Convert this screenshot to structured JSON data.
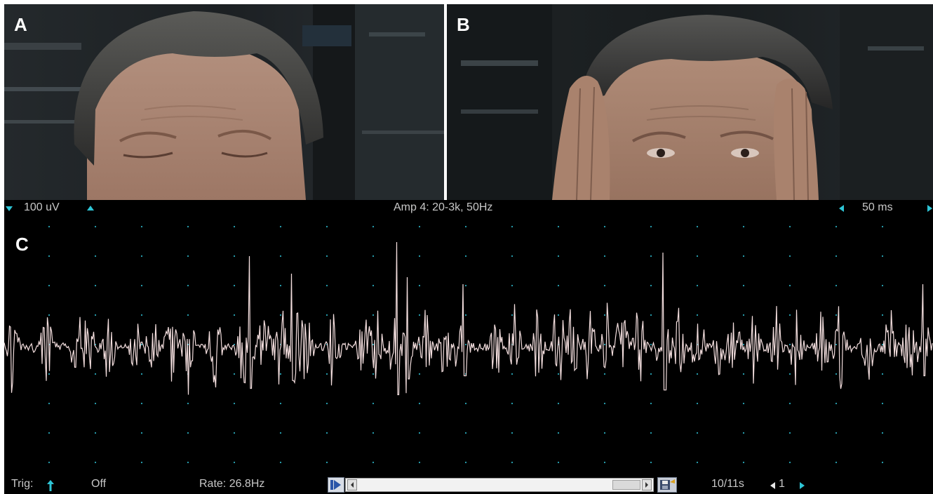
{
  "panels": {
    "a": {
      "label": "A"
    },
    "b": {
      "label": "B"
    },
    "c": {
      "label": "C"
    }
  },
  "emg": {
    "amplitude": "100 uV",
    "amplifier": "Amp 4: 20-3k, 50Hz",
    "timebase": "50 ms",
    "trigger_label": "Trig:",
    "trigger_state": "Off",
    "rate": "Rate: 26.8Hz",
    "sweep": "10/11s",
    "channel": "1"
  },
  "colors": {
    "accent": "#2ec5d6",
    "trace": "#f3dede",
    "grid_dot": "#2aa8b8",
    "screen_bg": "#000000"
  },
  "icons": {
    "amp_down": "triangle-down-icon",
    "amp_up": "triangle-up-icon",
    "time_left": "triangle-left-icon",
    "time_right": "triangle-right-icon",
    "trigger": "arrow-up-icon",
    "play": "play-icon",
    "save": "save-icon"
  }
}
